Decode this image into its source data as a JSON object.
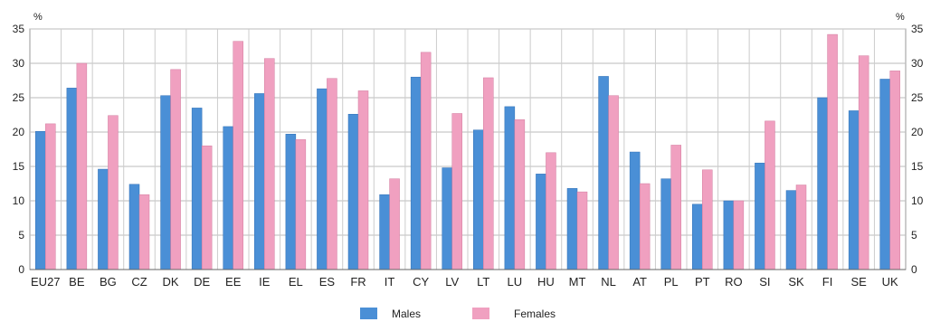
{
  "chart_data": {
    "type": "bar",
    "unit_left": "%",
    "unit_right": "%",
    "ylim": [
      0,
      35
    ],
    "yticks": [
      0,
      5,
      10,
      15,
      20,
      25,
      30,
      35
    ],
    "grid": true,
    "legend_position": "bottom-center",
    "categories": [
      "EU27",
      "BE",
      "BG",
      "CZ",
      "DK",
      "DE",
      "EE",
      "IE",
      "EL",
      "ES",
      "FR",
      "IT",
      "CY",
      "LV",
      "LT",
      "LU",
      "HU",
      "MT",
      "NL",
      "AT",
      "PL",
      "PT",
      "RO",
      "SI",
      "SK",
      "FI",
      "SE",
      "UK"
    ],
    "series": [
      {
        "name": "Males",
        "color": "#4a8fd6",
        "values": [
          20.1,
          26.4,
          14.6,
          12.4,
          25.3,
          23.5,
          20.8,
          25.6,
          19.7,
          26.3,
          22.6,
          10.9,
          28.0,
          14.8,
          20.3,
          23.7,
          13.9,
          11.8,
          28.1,
          17.1,
          13.2,
          9.5,
          10.0,
          15.5,
          11.5,
          25.0,
          23.1,
          27.7
        ]
      },
      {
        "name": "Females",
        "color": "#f0a0c0",
        "values": [
          21.2,
          30.0,
          22.4,
          10.9,
          29.1,
          18.0,
          33.2,
          30.7,
          18.9,
          27.8,
          26.0,
          13.2,
          31.6,
          22.7,
          27.9,
          21.8,
          17.0,
          11.3,
          25.3,
          12.5,
          18.1,
          14.5,
          10.0,
          21.6,
          12.3,
          34.2,
          31.1,
          28.9
        ]
      }
    ]
  }
}
